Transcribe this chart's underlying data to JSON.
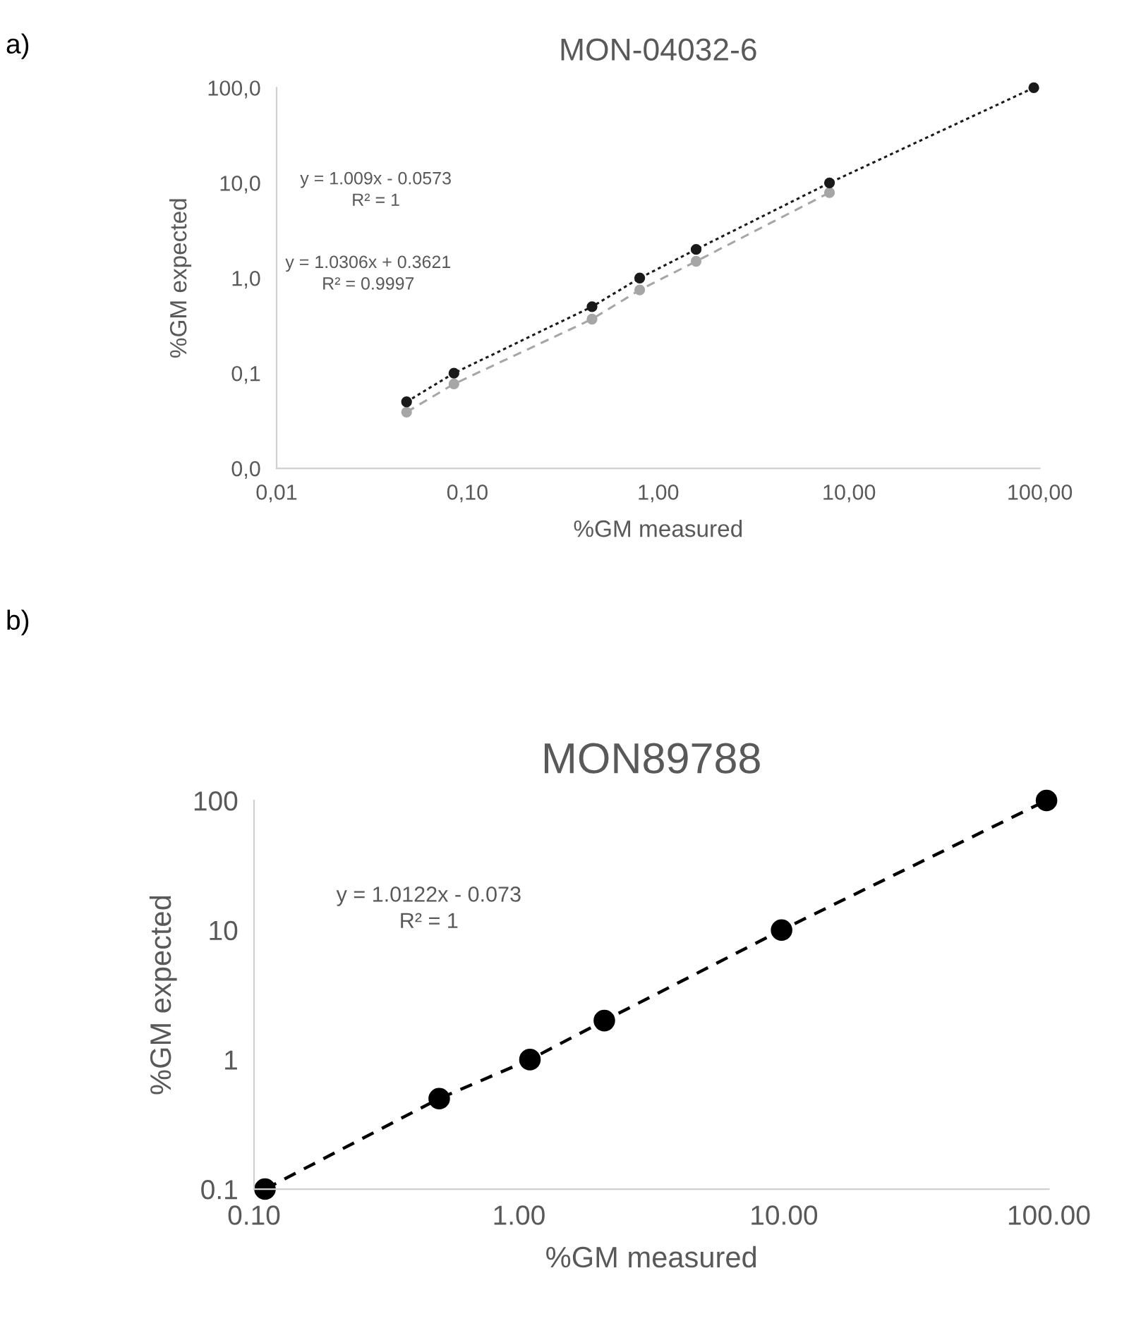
{
  "chart_data": [
    {
      "type": "line",
      "title": "MON-04032-6",
      "xlabel": "%GM measured",
      "ylabel": "%GM expected",
      "log": "xy",
      "marker": "circle",
      "xlim": [
        0.01,
        100
      ],
      "ylim": [
        0.01,
        100
      ],
      "xticks": [
        {
          "value": 0.01,
          "label": "0,01"
        },
        {
          "value": 0.1,
          "label": "0,10"
        },
        {
          "value": 1,
          "label": "1,00"
        },
        {
          "value": 10,
          "label": "10,00"
        },
        {
          "value": 100,
          "label": "100,00"
        }
      ],
      "yticks": [
        {
          "value": 0.01,
          "label": "0,0"
        },
        {
          "value": 0.1,
          "label": "0,1"
        },
        {
          "value": 1,
          "label": "1,0"
        },
        {
          "value": 10,
          "label": "10,0"
        },
        {
          "value": 100,
          "label": "100,0"
        }
      ],
      "x": [
        0.048,
        0.085,
        0.45,
        0.8,
        1.58,
        7.9,
        93
      ],
      "series": [
        {
          "color": "#a6a6a6",
          "line_style": "dashed",
          "values": [
            0.039,
            0.077,
            0.37,
            0.75,
            1.5,
            7.9,
            null
          ]
        },
        {
          "color": "#1a1a1a",
          "line_style": "dotted",
          "values": [
            0.05,
            0.1,
            0.5,
            1,
            2,
            10,
            100
          ]
        }
      ],
      "annotations": [
        "a)",
        "y = 1.009x - 0.0573\nR² = 1",
        "y = 1.0306x + 0.3621\nR² = 0.9997"
      ]
    },
    {
      "type": "line",
      "title": "MON89788",
      "xlabel": "%GM measured",
      "ylabel": "%GM expected",
      "log": "xy",
      "marker": "circle",
      "xlim": [
        0.1,
        100
      ],
      "ylim": [
        0.1,
        100
      ],
      "xticks": [
        {
          "value": 0.1,
          "label": "0.10"
        },
        {
          "value": 1,
          "label": "1.00"
        },
        {
          "value": 10,
          "label": "10.00"
        },
        {
          "value": 100,
          "label": "100.00"
        }
      ],
      "yticks": [
        0.1,
        1,
        10,
        100
      ],
      "x": [
        0.11,
        0.5,
        1.1,
        2.1,
        9.8,
        98
      ],
      "series": [
        {
          "color": "#000000",
          "line_style": "dashed",
          "values": [
            0.1,
            0.5,
            1,
            2,
            10,
            100
          ]
        }
      ],
      "annotations": [
        "b)",
        "y = 1.0122x - 0.073\nR² = 1"
      ]
    }
  ]
}
